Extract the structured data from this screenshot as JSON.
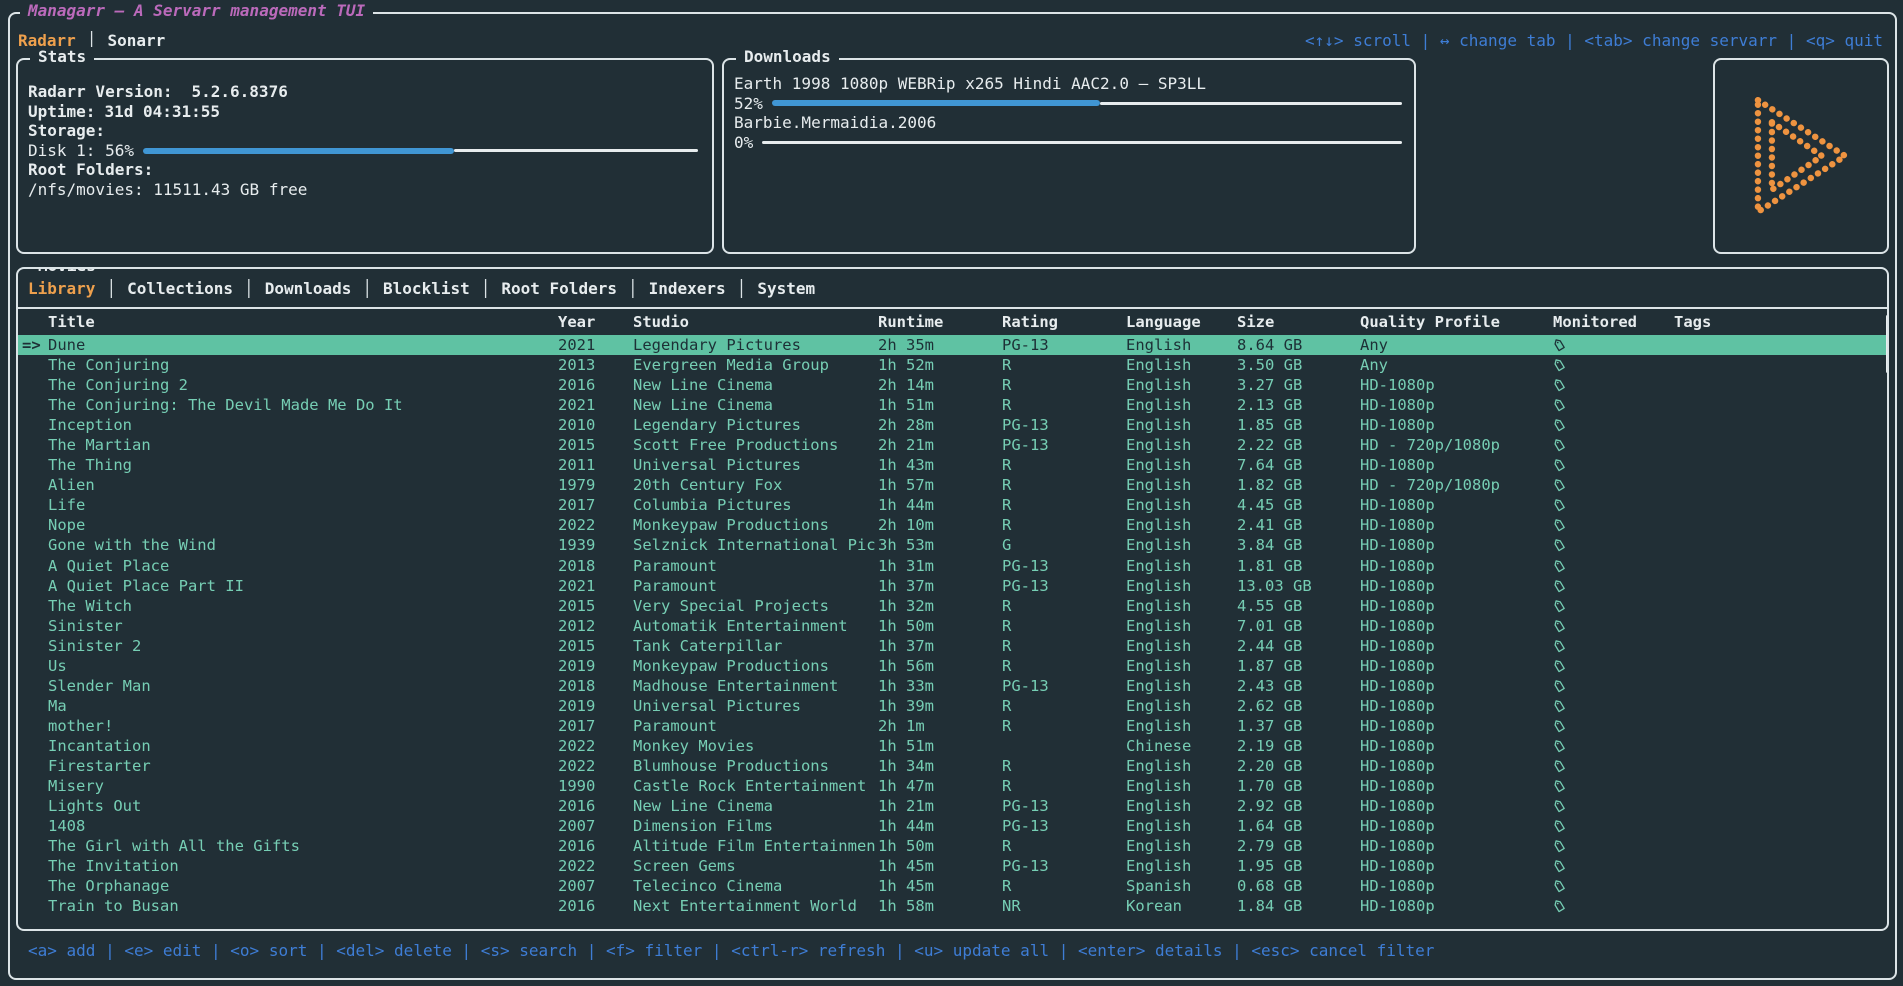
{
  "colors": {
    "background": "#212f36",
    "foreground": "#e7ecee",
    "border": "#dce4e7",
    "title-magenta": "#bb6abb",
    "accent-orange": "#eea04d",
    "keybind-blue": "#3e7dd5",
    "gauge-blue": "#4096d4",
    "row-teal": "#76ceb4",
    "selected-bg": "#5fc2a3",
    "selected-fg": "#1d3036",
    "logo-orange": "#ee9340"
  },
  "app": {
    "title": "Managarr – A Servarr management TUI",
    "tab_separator": "│",
    "servarr_tabs": [
      {
        "label": "Radarr",
        "active": true
      },
      {
        "label": "Sonarr",
        "active": false
      }
    ],
    "top_keybinds": "<↑↓> scroll | ↔ change tab | <tab> change servarr | <q> quit"
  },
  "stats": {
    "title": "Stats",
    "version_label": "Radarr Version:",
    "version_value": "5.2.6.8376",
    "uptime_label": "Uptime:",
    "uptime_value": "31d 04:31:55",
    "storage_label": "Storage:",
    "disk_label": "Disk 1: 56%",
    "disk_percent": 56,
    "root_folders_label": "Root Folders:",
    "root_folder_value": "/nfs/movies: 11511.43 GB free"
  },
  "downloads": {
    "title": "Downloads",
    "items": [
      {
        "name": "Earth 1998 1080p WEBRip x265 Hindi AAC2.0 – SP3LL",
        "percent_label": "52%",
        "percent": 52
      },
      {
        "name": "Barbie.Mermaidia.2006",
        "percent_label": "0%",
        "percent": 0
      }
    ]
  },
  "logo": {
    "icon": "managarr-play-logo"
  },
  "movies": {
    "title": "Movies",
    "tab_separator": "│",
    "tabs": [
      {
        "label": "Library",
        "active": true
      },
      {
        "label": "Collections",
        "active": false
      },
      {
        "label": "Downloads",
        "active": false
      },
      {
        "label": "Blocklist",
        "active": false
      },
      {
        "label": "Root Folders",
        "active": false
      },
      {
        "label": "Indexers",
        "active": false
      },
      {
        "label": "System",
        "active": false
      }
    ],
    "selected_marker": "=>",
    "monitored_icon": "tag",
    "columns": [
      "Title",
      "Year",
      "Studio",
      "Runtime",
      "Rating",
      "Language",
      "Size",
      "Quality Profile",
      "Monitored",
      "Tags"
    ],
    "rows": [
      {
        "title": "Dune",
        "year": "2021",
        "studio": "Legendary Pictures",
        "runtime": "2h 35m",
        "rating": "PG-13",
        "language": "English",
        "size": "8.64 GB",
        "quality_profile": "Any",
        "monitored": true,
        "tags": "",
        "selected": true
      },
      {
        "title": "The Conjuring",
        "year": "2013",
        "studio": "Evergreen Media Group",
        "runtime": "1h 52m",
        "rating": "R",
        "language": "English",
        "size": "3.50 GB",
        "quality_profile": "Any",
        "monitored": true,
        "tags": "",
        "selected": false
      },
      {
        "title": "The Conjuring 2",
        "year": "2016",
        "studio": "New Line Cinema",
        "runtime": "2h 14m",
        "rating": "R",
        "language": "English",
        "size": "3.27 GB",
        "quality_profile": "HD-1080p",
        "monitored": true,
        "tags": "",
        "selected": false
      },
      {
        "title": "The Conjuring: The Devil Made Me Do It",
        "year": "2021",
        "studio": "New Line Cinema",
        "runtime": "1h 51m",
        "rating": "R",
        "language": "English",
        "size": "2.13 GB",
        "quality_profile": "HD-1080p",
        "monitored": true,
        "tags": "",
        "selected": false
      },
      {
        "title": "Inception",
        "year": "2010",
        "studio": "Legendary Pictures",
        "runtime": "2h 28m",
        "rating": "PG-13",
        "language": "English",
        "size": "1.85 GB",
        "quality_profile": "HD-1080p",
        "monitored": true,
        "tags": "",
        "selected": false
      },
      {
        "title": "The Martian",
        "year": "2015",
        "studio": "Scott Free Productions",
        "runtime": "2h 21m",
        "rating": "PG-13",
        "language": "English",
        "size": "2.22 GB",
        "quality_profile": "HD - 720p/1080p",
        "monitored": true,
        "tags": "",
        "selected": false
      },
      {
        "title": "The Thing",
        "year": "2011",
        "studio": "Universal Pictures",
        "runtime": "1h 43m",
        "rating": "R",
        "language": "English",
        "size": "7.64 GB",
        "quality_profile": "HD-1080p",
        "monitored": true,
        "tags": "",
        "selected": false
      },
      {
        "title": "Alien",
        "year": "1979",
        "studio": "20th Century Fox",
        "runtime": "1h 57m",
        "rating": "R",
        "language": "English",
        "size": "1.82 GB",
        "quality_profile": "HD - 720p/1080p",
        "monitored": true,
        "tags": "",
        "selected": false
      },
      {
        "title": "Life",
        "year": "2017",
        "studio": "Columbia Pictures",
        "runtime": "1h 44m",
        "rating": "R",
        "language": "English",
        "size": "4.45 GB",
        "quality_profile": "HD-1080p",
        "monitored": true,
        "tags": "",
        "selected": false
      },
      {
        "title": "Nope",
        "year": "2022",
        "studio": "Monkeypaw Productions",
        "runtime": "2h 10m",
        "rating": "R",
        "language": "English",
        "size": "2.41 GB",
        "quality_profile": "HD-1080p",
        "monitored": true,
        "tags": "",
        "selected": false
      },
      {
        "title": "Gone with the Wind",
        "year": "1939",
        "studio": "Selznick International Pic",
        "runtime": "3h 53m",
        "rating": "G",
        "language": "English",
        "size": "3.84 GB",
        "quality_profile": "HD-1080p",
        "monitored": true,
        "tags": "",
        "selected": false
      },
      {
        "title": "A Quiet Place",
        "year": "2018",
        "studio": "Paramount",
        "runtime": "1h 31m",
        "rating": "PG-13",
        "language": "English",
        "size": "1.81 GB",
        "quality_profile": "HD-1080p",
        "monitored": true,
        "tags": "",
        "selected": false
      },
      {
        "title": "A Quiet Place Part II",
        "year": "2021",
        "studio": "Paramount",
        "runtime": "1h 37m",
        "rating": "PG-13",
        "language": "English",
        "size": "13.03 GB",
        "quality_profile": "HD-1080p",
        "monitored": true,
        "tags": "",
        "selected": false
      },
      {
        "title": "The Witch",
        "year": "2015",
        "studio": "Very Special Projects",
        "runtime": "1h 32m",
        "rating": "R",
        "language": "English",
        "size": "4.55 GB",
        "quality_profile": "HD-1080p",
        "monitored": true,
        "tags": "",
        "selected": false
      },
      {
        "title": "Sinister",
        "year": "2012",
        "studio": "Automatik Entertainment",
        "runtime": "1h 50m",
        "rating": "R",
        "language": "English",
        "size": "7.01 GB",
        "quality_profile": "HD-1080p",
        "monitored": true,
        "tags": "",
        "selected": false
      },
      {
        "title": "Sinister 2",
        "year": "2015",
        "studio": "Tank Caterpillar",
        "runtime": "1h 37m",
        "rating": "R",
        "language": "English",
        "size": "2.44 GB",
        "quality_profile": "HD-1080p",
        "monitored": true,
        "tags": "",
        "selected": false
      },
      {
        "title": "Us",
        "year": "2019",
        "studio": "Monkeypaw Productions",
        "runtime": "1h 56m",
        "rating": "R",
        "language": "English",
        "size": "1.87 GB",
        "quality_profile": "HD-1080p",
        "monitored": true,
        "tags": "",
        "selected": false
      },
      {
        "title": "Slender Man",
        "year": "2018",
        "studio": "Madhouse Entertainment",
        "runtime": "1h 33m",
        "rating": "PG-13",
        "language": "English",
        "size": "2.43 GB",
        "quality_profile": "HD-1080p",
        "monitored": true,
        "tags": "",
        "selected": false
      },
      {
        "title": "Ma",
        "year": "2019",
        "studio": "Universal Pictures",
        "runtime": "1h 39m",
        "rating": "R",
        "language": "English",
        "size": "2.62 GB",
        "quality_profile": "HD-1080p",
        "monitored": true,
        "tags": "",
        "selected": false
      },
      {
        "title": "mother!",
        "year": "2017",
        "studio": "Paramount",
        "runtime": "2h 1m",
        "rating": "R",
        "language": "English",
        "size": "1.37 GB",
        "quality_profile": "HD-1080p",
        "monitored": true,
        "tags": "",
        "selected": false
      },
      {
        "title": "Incantation",
        "year": "2022",
        "studio": "Monkey Movies",
        "runtime": "1h 51m",
        "rating": "",
        "language": "Chinese",
        "size": "2.19 GB",
        "quality_profile": "HD-1080p",
        "monitored": true,
        "tags": "",
        "selected": false
      },
      {
        "title": "Firestarter",
        "year": "2022",
        "studio": "Blumhouse Productions",
        "runtime": "1h 34m",
        "rating": "R",
        "language": "English",
        "size": "2.20 GB",
        "quality_profile": "HD-1080p",
        "monitored": true,
        "tags": "",
        "selected": false
      },
      {
        "title": "Misery",
        "year": "1990",
        "studio": "Castle Rock Entertainment",
        "runtime": "1h 47m",
        "rating": "R",
        "language": "English",
        "size": "1.70 GB",
        "quality_profile": "HD-1080p",
        "monitored": true,
        "tags": "",
        "selected": false
      },
      {
        "title": "Lights Out",
        "year": "2016",
        "studio": "New Line Cinema",
        "runtime": "1h 21m",
        "rating": "PG-13",
        "language": "English",
        "size": "2.92 GB",
        "quality_profile": "HD-1080p",
        "monitored": true,
        "tags": "",
        "selected": false
      },
      {
        "title": "1408",
        "year": "2007",
        "studio": "Dimension Films",
        "runtime": "1h 44m",
        "rating": "PG-13",
        "language": "English",
        "size": "1.64 GB",
        "quality_profile": "HD-1080p",
        "monitored": true,
        "tags": "",
        "selected": false
      },
      {
        "title": "The Girl with All the Gifts",
        "year": "2016",
        "studio": "Altitude Film Entertainmen",
        "runtime": "1h 50m",
        "rating": "R",
        "language": "English",
        "size": "2.79 GB",
        "quality_profile": "HD-1080p",
        "monitored": true,
        "tags": "",
        "selected": false
      },
      {
        "title": "The Invitation",
        "year": "2022",
        "studio": "Screen Gems",
        "runtime": "1h 45m",
        "rating": "PG-13",
        "language": "English",
        "size": "1.95 GB",
        "quality_profile": "HD-1080p",
        "monitored": true,
        "tags": "",
        "selected": false
      },
      {
        "title": "The Orphanage",
        "year": "2007",
        "studio": "Telecinco Cinema",
        "runtime": "1h 45m",
        "rating": "R",
        "language": "Spanish",
        "size": "0.68 GB",
        "quality_profile": "HD-1080p",
        "monitored": true,
        "tags": "",
        "selected": false
      },
      {
        "title": "Train to Busan",
        "year": "2016",
        "studio": "Next Entertainment World",
        "runtime": "1h 58m",
        "rating": "NR",
        "language": "Korean",
        "size": "1.84 GB",
        "quality_profile": "HD-1080p",
        "monitored": true,
        "tags": "",
        "selected": false
      }
    ]
  },
  "footer": {
    "keybinds": "<a> add | <e> edit | <o> sort | <del> delete | <s> search | <f> filter | <ctrl-r> refresh | <u> update all | <enter> details | <esc> cancel filter"
  }
}
